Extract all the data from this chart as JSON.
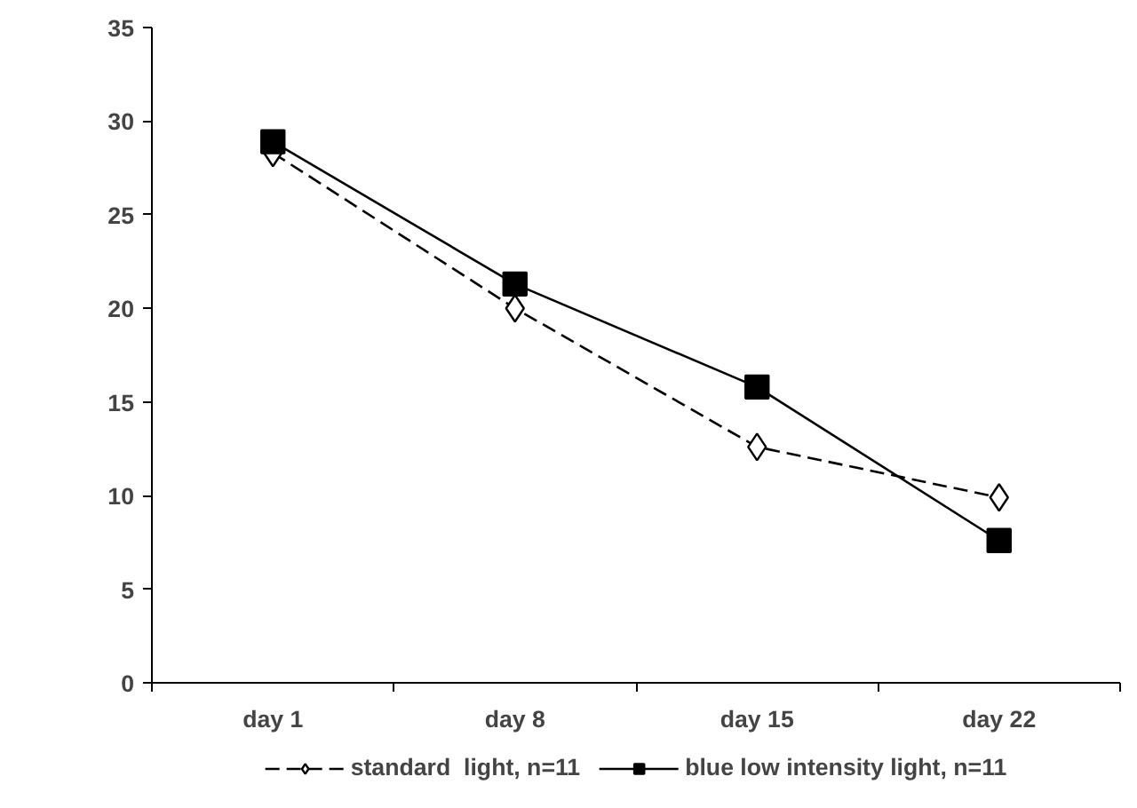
{
  "chart_data": {
    "type": "line",
    "categories": [
      "day 1",
      "day 8",
      "day 15",
      "day 22"
    ],
    "series": [
      {
        "name": "standard  light, n=11",
        "color": "#000000",
        "marker": "diamond",
        "line_style": "dashed",
        "values": [
          28.3,
          20.0,
          12.6,
          9.9
        ]
      },
      {
        "name": "blue low intensity light, n=11",
        "color": "#000000",
        "marker": "square",
        "line_style": "solid",
        "values": [
          28.9,
          21.3,
          15.8,
          7.6
        ]
      }
    ],
    "ylim": [
      0,
      35
    ],
    "yticks": [
      0,
      5,
      10,
      15,
      20,
      25,
      30,
      35
    ],
    "grid": false,
    "legend": "bottom"
  }
}
